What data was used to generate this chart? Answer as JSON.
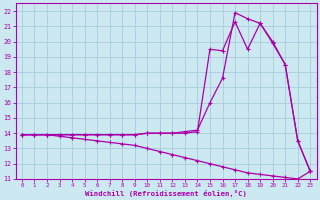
{
  "background_color": "#cce8f0",
  "grid_color": "#aaccdd",
  "line_color": "#aa00aa",
  "xlim": [
    -0.5,
    23.5
  ],
  "ylim": [
    11,
    22.5
  ],
  "xticks": [
    0,
    1,
    2,
    3,
    4,
    5,
    6,
    7,
    8,
    9,
    10,
    11,
    12,
    13,
    14,
    15,
    16,
    17,
    18,
    19,
    20,
    21,
    22,
    23
  ],
  "yticks": [
    11,
    12,
    13,
    14,
    15,
    16,
    17,
    18,
    19,
    20,
    21,
    22
  ],
  "xlabel": "Windchill (Refroidissement éolien,°C)",
  "line1_x": [
    0,
    1,
    2,
    3,
    4,
    5,
    6,
    7,
    8,
    9,
    10,
    11,
    12,
    13,
    14,
    15,
    16,
    17,
    18,
    19,
    20,
    21,
    22,
    23
  ],
  "line1_y": [
    13.9,
    13.9,
    13.9,
    13.8,
    13.7,
    13.6,
    13.5,
    13.4,
    13.3,
    13.2,
    13.0,
    12.8,
    12.6,
    12.4,
    12.2,
    12.0,
    11.8,
    11.6,
    11.4,
    11.3,
    11.2,
    11.1,
    11.0,
    11.5
  ],
  "line2_x": [
    0,
    1,
    2,
    3,
    4,
    5,
    6,
    7,
    8,
    9,
    10,
    11,
    12,
    13,
    14,
    15,
    16,
    17,
    18,
    19,
    20,
    21,
    22,
    23
  ],
  "line2_y": [
    13.9,
    13.9,
    13.9,
    13.9,
    13.9,
    13.9,
    13.9,
    13.9,
    13.9,
    13.9,
    14.0,
    14.0,
    14.0,
    14.0,
    14.1,
    19.5,
    19.4,
    21.3,
    19.5,
    21.2,
    19.9,
    18.5,
    13.5,
    11.5
  ],
  "line3_x": [
    0,
    1,
    2,
    3,
    4,
    5,
    6,
    7,
    8,
    9,
    10,
    11,
    12,
    13,
    14,
    15,
    16,
    17,
    18,
    19,
    20,
    21,
    22,
    23
  ],
  "line3_y": [
    13.9,
    13.9,
    13.9,
    13.9,
    13.9,
    13.9,
    13.9,
    13.9,
    13.9,
    13.9,
    14.0,
    14.0,
    14.0,
    14.1,
    14.2,
    16.0,
    17.6,
    21.9,
    21.5,
    21.2,
    20.0,
    18.5,
    13.5,
    11.5
  ],
  "figsize": [
    3.2,
    2.0
  ],
  "dpi": 100
}
